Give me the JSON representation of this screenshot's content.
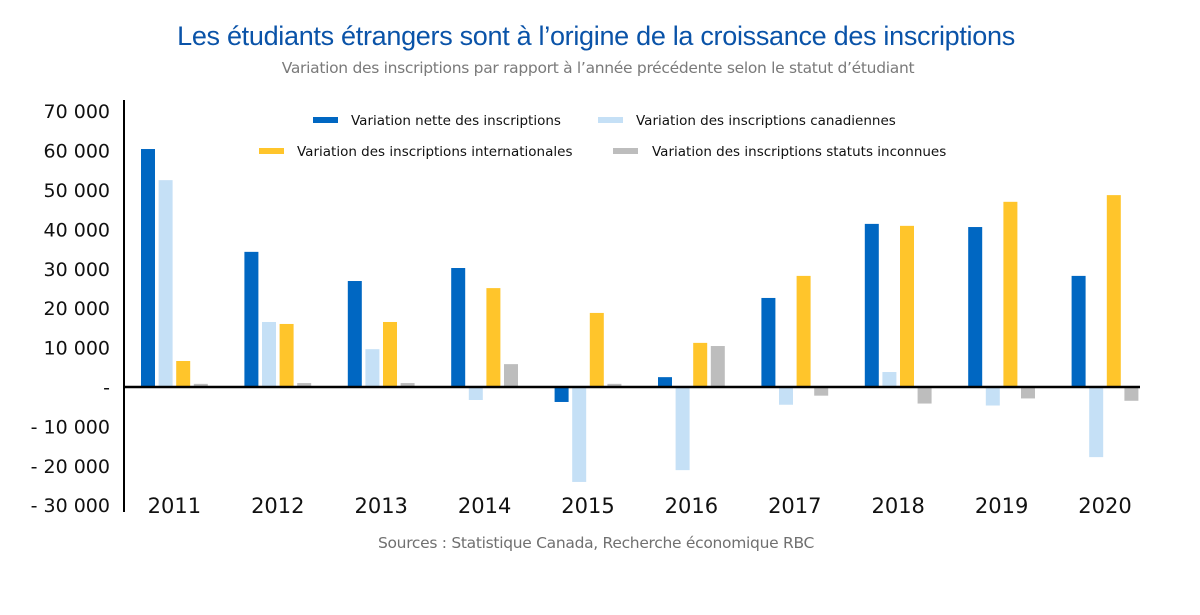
{
  "chart_data": {
    "type": "bar",
    "title": "Les étudiants étrangers sont à l’origine de la croissance des inscriptions",
    "subtitle": "Variation des inscriptions par rapport à l’année précédente selon le statut d’étudiant",
    "source": "Sources : Statistique Canada, Recherche économique RBC",
    "xlabel": "",
    "ylabel": "",
    "ylim": [
      -30000,
      70000
    ],
    "yticks": [
      70000,
      60000,
      50000,
      40000,
      30000,
      20000,
      10000,
      0,
      -10000,
      -20000,
      -30000
    ],
    "ytick_labels": [
      "70 000",
      "60 000",
      "50 000",
      "40 000",
      "30 000",
      "20 000",
      "10 000",
      "-",
      "- 10 000",
      "- 20 000",
      "- 30 000"
    ],
    "grid": false,
    "legend_position": "top",
    "categories": [
      "2011",
      "2012",
      "2013",
      "2014",
      "2015",
      "2016",
      "2017",
      "2018",
      "2019",
      "2020"
    ],
    "series": [
      {
        "name": "Variation nette des inscriptions",
        "color": "#0067c2",
        "values": [
          60400,
          34300,
          26900,
          30200,
          -3800,
          2500,
          22600,
          41400,
          40600,
          28200
        ]
      },
      {
        "name": "Variation des inscriptions canadiennes",
        "color": "#c5e0f6",
        "values": [
          52500,
          16500,
          9600,
          -3300,
          -24100,
          -21100,
          -4500,
          3800,
          -4700,
          -17800
        ]
      },
      {
        "name": "Variation des inscriptions internationales",
        "color": "#ffc52b",
        "values": [
          6600,
          16000,
          16500,
          25100,
          18800,
          11200,
          28200,
          40900,
          47000,
          48700
        ]
      },
      {
        "name": "Variation des inscriptions statuts inconnues",
        "color": "#bdbdbd",
        "values": [
          800,
          1000,
          1000,
          5800,
          800,
          10400,
          -2200,
          -4200,
          -2900,
          -3500
        ]
      }
    ]
  }
}
